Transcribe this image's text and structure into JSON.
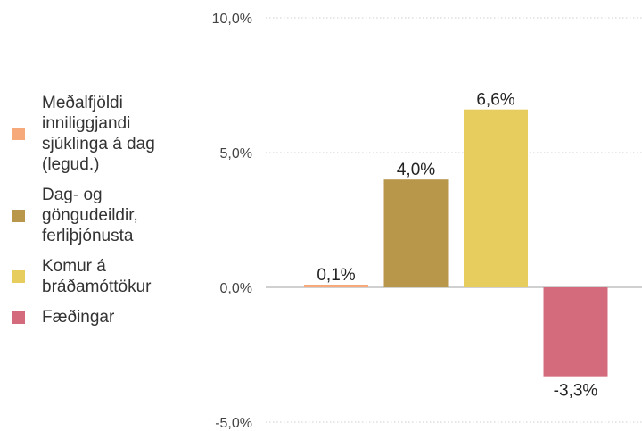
{
  "chart_data": {
    "type": "bar",
    "title": "",
    "xlabel": "",
    "ylabel": "",
    "ylim": [
      -5,
      10
    ],
    "yticks": [
      "10,0%",
      "5,0%",
      "0,0%",
      "-5,0%"
    ],
    "ytick_values": [
      10,
      5,
      0,
      -5
    ],
    "grid": true,
    "legend_position": "left",
    "series": [
      {
        "name": "Meðalfjöldi inniliggjandi sjúklinga á dag (legud.)",
        "value": 0.1,
        "label": "0,1%",
        "color": "#f6a97a"
      },
      {
        "name": "Dag- og göngudeildir, ferliþjónusta",
        "value": 4.0,
        "label": "4,0%",
        "color": "#b8964a"
      },
      {
        "name": "Komur á bráðamóttökur",
        "value": 6.6,
        "label": "6,6%",
        "color": "#e6cd5e"
      },
      {
        "name": "Fæðingar",
        "value": -3.3,
        "label": "-3,3%",
        "color": "#d36b7d"
      }
    ]
  },
  "legend": {
    "items": [
      {
        "label": "Meðalfjöldi\ninniliggjandi\nsjúklinga á dag\n(legud.)",
        "color": "#f6a97a"
      },
      {
        "label": "Dag- og\ngöngudeildir,\nferliþjónusta",
        "color": "#b8964a"
      },
      {
        "label": "Komur á\nbráðamóttökur",
        "color": "#e6cd5e"
      },
      {
        "label": "Fæðingar",
        "color": "#d36b7d"
      }
    ]
  }
}
